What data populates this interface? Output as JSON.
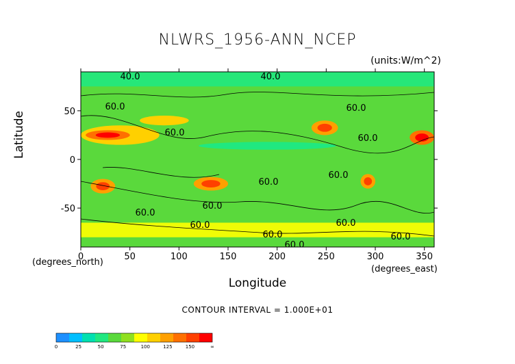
{
  "chart_data": {
    "type": "heatmap",
    "title": "NLWRS_1956-ANN_NCEP",
    "units": "(units:W/m^2)",
    "xlabel": "Longitude",
    "ylabel": "Latitude",
    "x_unit_label": "(degrees_east)",
    "y_unit_label": "(degrees_north)",
    "xlim": [
      0,
      360
    ],
    "ylim": [
      -90,
      90
    ],
    "x_ticks": [
      0,
      50,
      100,
      150,
      200,
      250,
      300,
      350
    ],
    "y_ticks": [
      50,
      0,
      -50
    ],
    "contour_interval_text": "CONTOUR INTERVAL = 1.000E+01",
    "contour_labels": [
      "40.0",
      "40.0",
      "60.0",
      "60.0",
      "60.0",
      "60.0",
      "60.0",
      "60.0",
      "60.0",
      "60.0",
      "60.0",
      "60.0",
      "60.0",
      "60.0",
      "60.0"
    ],
    "colorbar": {
      "ticks": [
        "0",
        "25",
        "50",
        "75",
        "100",
        "125",
        "150",
        "∞"
      ],
      "colors": [
        "#1e90ff",
        "#00bfff",
        "#00e0b0",
        "#20e880",
        "#5ad93c",
        "#90e020",
        "#ffff00",
        "#ffd000",
        "#ffa000",
        "#ff7000",
        "#ff4000",
        "#ff0000"
      ]
    },
    "regions": [
      {
        "lon": [
          0,
          360
        ],
        "lat": [
          -90,
          90
        ],
        "value": 60
      },
      {
        "lon": [
          0,
          360
        ],
        "lat": [
          75,
          90
        ],
        "value": 42
      },
      {
        "lon": [
          120,
          260
        ],
        "lat": [
          10,
          18
        ],
        "value": 48
      },
      {
        "lon": [
          165,
          275
        ],
        "lat": [
          -12,
          -3
        ],
        "value": 50
      },
      {
        "lon": [
          370,
          460
        ],
        "lat": [
          -10,
          0
        ],
        "value": 50
      },
      {
        "lon": [
          0,
          80
        ],
        "lat": [
          15,
          35
        ],
        "value": 95
      },
      {
        "lon": [
          5,
          50
        ],
        "lat": [
          20,
          30
        ],
        "value": 120
      },
      {
        "lon": [
          60,
          110
        ],
        "lat": [
          35,
          45
        ],
        "value": 90
      },
      {
        "lon": [
          235,
          262
        ],
        "lat": [
          25,
          40
        ],
        "value": 110
      },
      {
        "lon": [
          335,
          360
        ],
        "lat": [
          15,
          30
        ],
        "value": 120
      },
      {
        "lon": [
          115,
          150
        ],
        "lat": [
          -32,
          -18
        ],
        "value": 110
      },
      {
        "lon": [
          10,
          35
        ],
        "lat": [
          -35,
          -20
        ],
        "value": 105
      },
      {
        "lon": [
          285,
          300
        ],
        "lat": [
          -30,
          -15
        ],
        "value": 110
      },
      {
        "lon": [
          0,
          360
        ],
        "lat": [
          -80,
          -65
        ],
        "value": 85
      }
    ]
  }
}
